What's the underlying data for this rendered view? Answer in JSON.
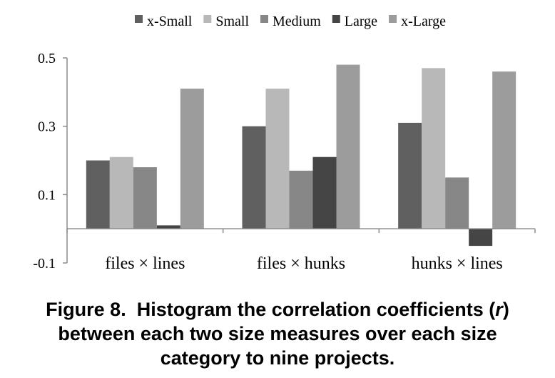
{
  "chart_data": {
    "type": "bar",
    "categories": [
      "files × lines",
      "files × hunks",
      "hunks × lines"
    ],
    "series": [
      {
        "name": "x-Small",
        "color": "#606060",
        "values": [
          0.2,
          0.3,
          0.31
        ]
      },
      {
        "name": "Small",
        "color": "#b8b8b8",
        "values": [
          0.21,
          0.41,
          0.47
        ]
      },
      {
        "name": "Medium",
        "color": "#878787",
        "values": [
          0.18,
          0.17,
          0.15
        ]
      },
      {
        "name": "Large",
        "color": "#454545",
        "values": [
          0.01,
          0.21,
          -0.05
        ]
      },
      {
        "name": "x-Large",
        "color": "#9c9c9c",
        "values": [
          0.41,
          0.48,
          0.46
        ]
      }
    ],
    "y_ticks": [
      "-0.1",
      "0.1",
      "0.3",
      "0.5"
    ],
    "ylim": [
      -0.1,
      0.5
    ],
    "legend_position": "top",
    "grid": false
  },
  "caption": {
    "lines": [
      "Figure 8.  Histogram the correlation coefficients (r)",
      "between each two size measures over each size",
      "category to nine projects."
    ]
  }
}
